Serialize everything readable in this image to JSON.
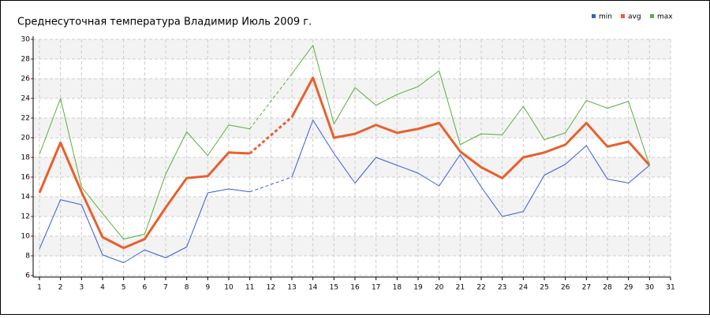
{
  "chart_data": {
    "type": "line",
    "title": "Среднесуточная температура Владимир  Июль 2009 г.",
    "x": [
      1,
      2,
      3,
      4,
      5,
      6,
      7,
      8,
      9,
      10,
      11,
      12,
      13,
      14,
      15,
      16,
      17,
      18,
      19,
      20,
      21,
      22,
      23,
      24,
      25,
      26,
      27,
      28,
      29,
      30
    ],
    "series": [
      {
        "name": "min",
        "color": "#3a5bd9",
        "values": [
          8.7,
          13.7,
          13.2,
          8.1,
          7.3,
          8.6,
          7.8,
          8.9,
          14.4,
          14.8,
          14.5,
          null,
          16.0,
          21.8,
          18.4,
          15.4,
          18.0,
          17.2,
          16.4,
          15.1,
          18.3,
          15.0,
          12.0,
          12.5,
          16.2,
          17.3,
          19.2,
          15.8,
          15.4,
          17.2
        ]
      },
      {
        "name": "avg",
        "color": "#e8602c",
        "values": [
          14.4,
          19.5,
          14.5,
          9.9,
          8.8,
          9.7,
          12.9,
          15.9,
          16.1,
          18.5,
          18.4,
          null,
          22.1,
          26.1,
          20.0,
          20.4,
          21.3,
          20.5,
          20.9,
          21.5,
          18.6,
          17.0,
          15.9,
          18.0,
          18.5,
          19.3,
          21.5,
          19.1,
          19.6,
          17.2
        ]
      },
      {
        "name": "max",
        "color": "#5aae3c",
        "values": [
          18.3,
          24.0,
          15.0,
          12.3,
          9.7,
          10.2,
          16.3,
          20.6,
          18.2,
          21.3,
          20.9,
          null,
          26.5,
          29.4,
          21.4,
          25.1,
          23.3,
          24.4,
          25.2,
          26.8,
          19.3,
          20.4,
          20.3,
          23.2,
          19.8,
          20.5,
          23.8,
          23.0,
          23.7,
          17.2
        ]
      }
    ],
    "xlim": [
      1,
      31
    ],
    "xticks": [
      1,
      2,
      3,
      4,
      5,
      6,
      7,
      8,
      9,
      10,
      11,
      12,
      13,
      14,
      15,
      16,
      17,
      18,
      19,
      20,
      21,
      22,
      23,
      24,
      25,
      26,
      27,
      28,
      29,
      30,
      31
    ],
    "ylim": [
      6,
      30
    ],
    "yticks": [
      6,
      8,
      10,
      12,
      14,
      16,
      18,
      20,
      22,
      24,
      26,
      28,
      30
    ],
    "grid": true
  }
}
